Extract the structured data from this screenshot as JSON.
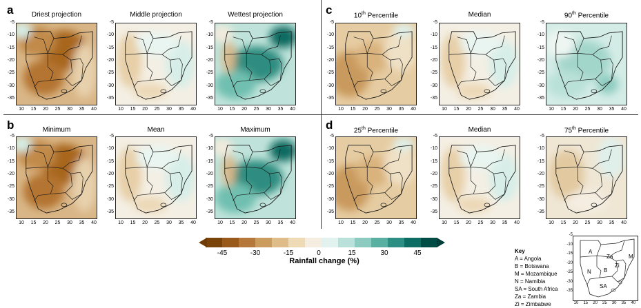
{
  "panel_labels": {
    "a": "a",
    "b": "b",
    "c": "c",
    "d": "d"
  },
  "panels": {
    "a": [
      "Driest projection",
      "Middle projection",
      "Wettest projection"
    ],
    "b": [
      "Minimum",
      "Mean",
      "Maximum"
    ],
    "c": [
      {
        "main": "10",
        "sup": "th",
        "rest": " Percentile"
      },
      {
        "main": "Median",
        "sup": "",
        "rest": ""
      },
      {
        "main": "90",
        "sup": "th",
        "rest": " Percentile"
      }
    ],
    "d": [
      {
        "main": "25",
        "sup": "th",
        "rest": " Percentile"
      },
      {
        "main": "Median",
        "sup": "",
        "rest": ""
      },
      {
        "main": "75",
        "sup": "th",
        "rest": " Percentile"
      }
    ]
  },
  "map_styles": {
    "a": [
      "dry",
      "neutral",
      "wet"
    ],
    "b": [
      "dry",
      "neutral",
      "wet"
    ],
    "c": [
      "mild-dry",
      "neutral",
      "mild-wet"
    ],
    "d": [
      "mild-dry",
      "neutral",
      "light"
    ]
  },
  "y_ticks": [
    "-5",
    "-10",
    "-15",
    "-20",
    "-25",
    "-30",
    "-35"
  ],
  "x_ticks": [
    "10",
    "15",
    "20",
    "25",
    "30",
    "35",
    "40"
  ],
  "colorbar": {
    "ticks": [
      "-45",
      "-30",
      "-15",
      "0",
      "15",
      "30",
      "45"
    ],
    "label": "Rainfall change (%)",
    "colors": [
      "#7a4309",
      "#99591a",
      "#b5783a",
      "#cc9c5f",
      "#dfbd89",
      "#eedbb6",
      "#f5eee0",
      "#e2f2ee",
      "#b9e1d9",
      "#8ccbbf",
      "#59b0a2",
      "#2d8f84",
      "#0e6d63",
      "#004d46"
    ]
  },
  "key": {
    "title": "Key",
    "items": [
      "A = Angola",
      "B = Botswana",
      "M = Mozambique",
      "N = Namibia",
      "SA = South Africa",
      "Za = Zambia",
      "Zi = Zimbabwe"
    ],
    "map_labels": [
      "A",
      "Za",
      "M",
      "Zi",
      "B",
      "N",
      "SA"
    ],
    "y_ticks": [
      "-5",
      "-10",
      "-15",
      "-20",
      "-25",
      "-30",
      "-35"
    ],
    "x_ticks": [
      "10",
      "15",
      "20",
      "25",
      "30",
      "35",
      "40"
    ]
  }
}
